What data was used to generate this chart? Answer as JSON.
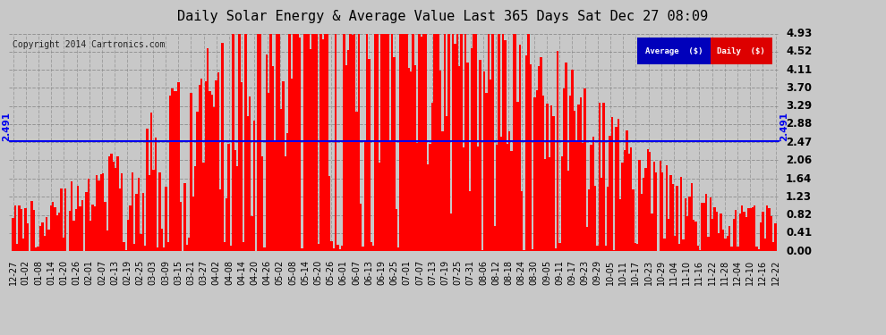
{
  "title": "Daily Solar Energy & Average Value Last 365 Days Sat Dec 27 08:09",
  "copyright": "Copyright 2014 Cartronics.com",
  "average_value": 2.491,
  "y_max": 4.93,
  "y_ticks": [
    0.0,
    0.41,
    0.82,
    1.23,
    1.64,
    2.06,
    2.47,
    2.88,
    3.29,
    3.7,
    4.11,
    4.52,
    4.93
  ],
  "bar_color": "#FF0000",
  "avg_line_color": "#0000EE",
  "background_color": "#C8C8C8",
  "plot_bg_color": "#C8C8C8",
  "grid_color": "#888888",
  "title_color": "#000000",
  "legend_avg_bg": "#0000BB",
  "legend_daily_bg": "#DD0000",
  "legend_text_color": "#FFFFFF",
  "avg_label_color": "#0000EE",
  "x_labels": [
    "12-27",
    "01-02",
    "01-08",
    "01-14",
    "01-20",
    "01-26",
    "02-01",
    "02-07",
    "02-13",
    "02-19",
    "02-25",
    "03-03",
    "03-09",
    "03-15",
    "03-21",
    "03-27",
    "04-02",
    "04-08",
    "04-14",
    "04-20",
    "04-26",
    "05-02",
    "05-08",
    "05-14",
    "05-20",
    "05-26",
    "06-01",
    "06-07",
    "06-13",
    "06-19",
    "06-25",
    "07-01",
    "07-07",
    "07-13",
    "07-19",
    "07-25",
    "07-31",
    "08-06",
    "08-12",
    "08-18",
    "08-24",
    "08-30",
    "09-05",
    "09-11",
    "09-17",
    "09-23",
    "09-29",
    "10-05",
    "10-11",
    "10-17",
    "10-23",
    "10-29",
    "11-04",
    "11-10",
    "11-16",
    "11-22",
    "11-28",
    "12-04",
    "12-10",
    "12-16",
    "12-22"
  ],
  "num_bars": 365,
  "seed": 42
}
